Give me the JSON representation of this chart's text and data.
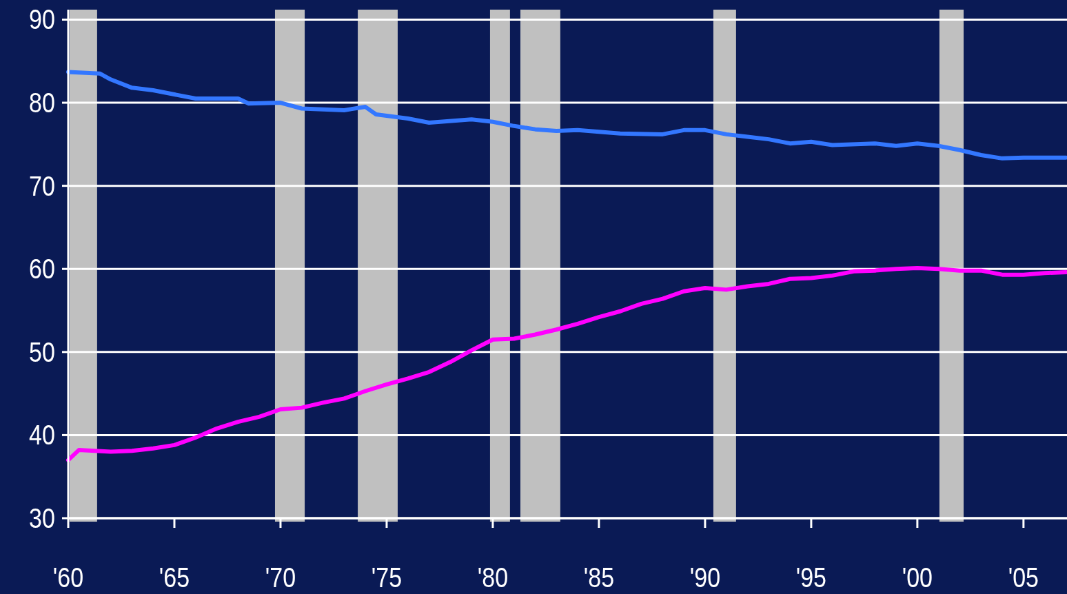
{
  "chart_data": {
    "type": "line",
    "xlim": [
      1960,
      2007.05
    ],
    "ylim": [
      30,
      91.2
    ],
    "xticks": [
      {
        "value": 1960,
        "label": "'60"
      },
      {
        "value": 1965,
        "label": "'65"
      },
      {
        "value": 1970,
        "label": "'70"
      },
      {
        "value": 1975,
        "label": "'75"
      },
      {
        "value": 1980,
        "label": "'80"
      },
      {
        "value": 1985,
        "label": "'85"
      },
      {
        "value": 1990,
        "label": "'90"
      },
      {
        "value": 1995,
        "label": "'95"
      },
      {
        "value": 2000,
        "label": "'00"
      },
      {
        "value": 2005,
        "label": "'05"
      }
    ],
    "yticks": [
      30,
      40,
      50,
      60,
      70,
      80,
      90
    ],
    "grid": "y",
    "line_style": "solid",
    "marker": "none",
    "bands": [
      {
        "axis": "x",
        "from": 1960.06,
        "to": 1961.36,
        "color": "#c0c0c0"
      },
      {
        "axis": "x",
        "from": 1969.74,
        "to": 1971.14,
        "color": "#c0c0c0"
      },
      {
        "axis": "x",
        "from": 1973.64,
        "to": 1975.52,
        "color": "#c0c0c0"
      },
      {
        "axis": "x",
        "from": 1979.87,
        "to": 1980.81,
        "color": "#c0c0c0"
      },
      {
        "axis": "x",
        "from": 1981.3,
        "to": 1983.18,
        "color": "#c0c0c0"
      },
      {
        "axis": "x",
        "from": 1990.39,
        "to": 1991.46,
        "color": "#c0c0c0"
      },
      {
        "axis": "x",
        "from": 2001.04,
        "to": 2002.18,
        "color": "#c0c0c0"
      }
    ],
    "series": [
      {
        "color": "#3377ff",
        "x": [
          1960,
          1961.5,
          1962,
          1963,
          1964,
          1965,
          1966,
          1968,
          1968.5,
          1970,
          1971,
          1973,
          1974,
          1974.5,
          1976,
          1977,
          1979,
          1980,
          1981,
          1982,
          1983,
          1984,
          1986,
          1988,
          1989,
          1990,
          1991,
          1992,
          1993,
          1994,
          1995,
          1996,
          1998,
          1999,
          2000,
          2001,
          2002,
          2003,
          2004,
          2005,
          2007
        ],
        "values": [
          83.7,
          83.5,
          82.8,
          81.8,
          81.5,
          81.0,
          80.5,
          80.5,
          79.9,
          80.0,
          79.3,
          79.1,
          79.5,
          78.6,
          78.1,
          77.6,
          78.0,
          77.7,
          77.2,
          76.8,
          76.6,
          76.7,
          76.3,
          76.2,
          76.7,
          76.7,
          76.2,
          75.9,
          75.6,
          75.1,
          75.3,
          74.9,
          75.1,
          74.8,
          75.1,
          74.8,
          74.3,
          73.7,
          73.3,
          73.4,
          73.4
        ]
      },
      {
        "color": "#ff00ff",
        "x": [
          1960,
          1960.5,
          1962,
          1963,
          1964,
          1965,
          1966,
          1967,
          1968,
          1969,
          1970,
          1971,
          1972,
          1973,
          1974,
          1975,
          1976,
          1977,
          1978,
          1979,
          1980,
          1981,
          1982,
          1983,
          1984,
          1985,
          1986,
          1987,
          1988,
          1989,
          1990,
          1991,
          1992,
          1993,
          1994,
          1995,
          1996,
          1997,
          1998,
          1999,
          2000,
          2001,
          2002,
          2003,
          2004,
          2005,
          2006,
          2007
        ],
        "values": [
          37.0,
          38.2,
          38.0,
          38.1,
          38.4,
          38.8,
          39.7,
          40.8,
          41.6,
          42.2,
          43.1,
          43.3,
          43.9,
          44.4,
          45.3,
          46.1,
          46.8,
          47.6,
          48.8,
          50.2,
          51.5,
          51.6,
          52.1,
          52.7,
          53.4,
          54.2,
          54.9,
          55.8,
          56.4,
          57.3,
          57.7,
          57.5,
          57.9,
          58.2,
          58.8,
          58.9,
          59.2,
          59.7,
          59.8,
          60.0,
          60.1,
          60.0,
          59.8,
          59.8,
          59.3,
          59.3,
          59.5,
          59.6
        ]
      }
    ]
  }
}
